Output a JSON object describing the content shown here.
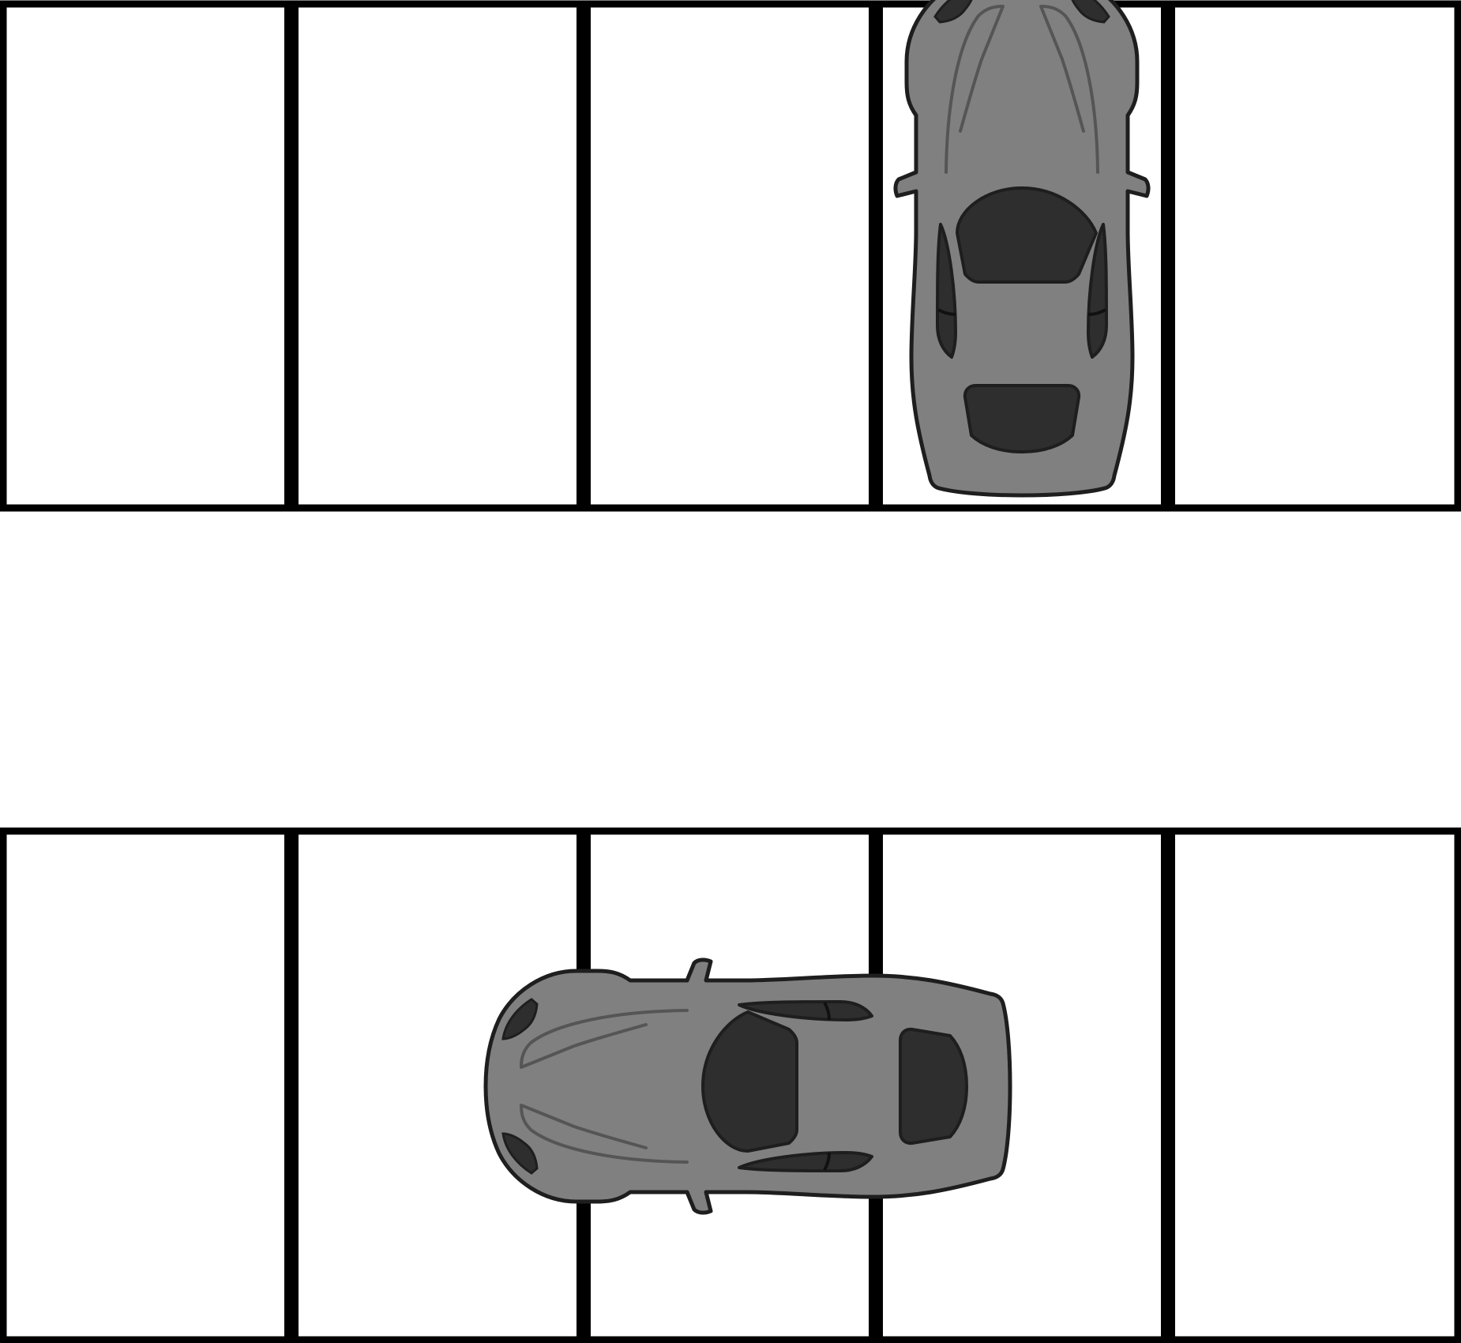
{
  "scene": {
    "background_color": "#ffffff",
    "line_color": "#000000",
    "top_row": {
      "space_count": 5,
      "spaces": [
        {
          "occupied": false
        },
        {
          "occupied": false
        },
        {
          "occupied": false
        },
        {
          "occupied": true
        },
        {
          "occupied": false
        }
      ]
    },
    "bottom_row": {
      "space_count": 5,
      "spaces": [
        {
          "occupied": false
        },
        {
          "occupied": true
        },
        {
          "occupied": true
        },
        {
          "occupied": true
        },
        {
          "occupied": false
        }
      ]
    },
    "cars": [
      {
        "id": "top-car",
        "row": "top",
        "orientation": "vertical",
        "icon": "car-top-view-icon",
        "body_color": "#808080",
        "glass_color": "#2e2e2e"
      },
      {
        "id": "bottom-car",
        "row": "bottom",
        "orientation": "horizontal",
        "icon": "car-top-view-icon",
        "body_color": "#808080",
        "glass_color": "#2e2e2e"
      }
    ]
  }
}
